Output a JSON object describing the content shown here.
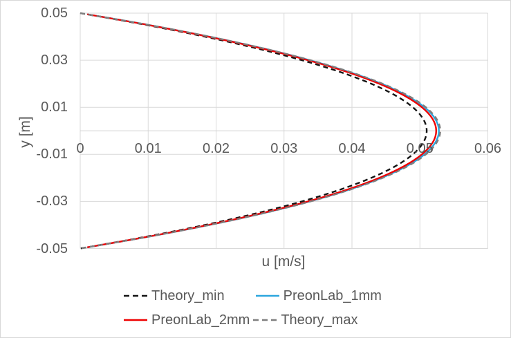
{
  "chart_data": {
    "type": "line",
    "title": "",
    "xlabel": "u [m/s]",
    "ylabel": "y [m]",
    "xlim": [
      0,
      0.06
    ],
    "ylim": [
      -0.05,
      0.05
    ],
    "grid": true,
    "legend_position": "bottom",
    "x_ticks": [
      0,
      0.01,
      0.02,
      0.03,
      0.04,
      0.05,
      0.06
    ],
    "x_tick_labels": [
      "0",
      "0.01",
      "0.02",
      "0.03",
      "0.04",
      "0.05",
      "0.06"
    ],
    "y_ticks": [
      0.05,
      0.03,
      0.01,
      -0.01,
      -0.03,
      -0.05
    ],
    "y_tick_labels": [
      "0.05",
      "0.03",
      "0.01",
      "-0.01",
      "-0.03",
      "-0.05"
    ],
    "axis_cross_y": 0,
    "series": [
      {
        "name": "Theory_min",
        "color": "#141414",
        "style": "dashed",
        "u_max": 0.051,
        "y": [
          0.05,
          0.045,
          0.04,
          0.035,
          0.03,
          0.025,
          0.02,
          0.015,
          0.01,
          0.005,
          0,
          -0.005,
          -0.01,
          -0.015,
          -0.02,
          -0.025,
          -0.03,
          -0.035,
          -0.04,
          -0.045,
          -0.05
        ],
        "u": [
          0,
          0.00969,
          0.01836,
          0.02601,
          0.03264,
          0.03825,
          0.04284,
          0.04641,
          0.04896,
          0.05049,
          0.051,
          0.05049,
          0.04896,
          0.04641,
          0.04284,
          0.03825,
          0.03264,
          0.02601,
          0.01836,
          0.00969,
          0
        ]
      },
      {
        "name": "PreonLab_1mm",
        "color": "#2BA6DE",
        "style": "solid",
        "u_max": 0.0528,
        "y": [
          0.0495,
          0.045,
          0.04,
          0.035,
          0.03,
          0.025,
          0.02,
          0.015,
          0.01,
          0.005,
          0,
          -0.005,
          -0.01,
          -0.015,
          -0.02,
          -0.025,
          -0.03,
          -0.035,
          -0.04,
          -0.045,
          -0.0495
        ],
        "u": [
          0.00105,
          0.01003,
          0.01901,
          0.02693,
          0.03379,
          0.0396,
          0.04435,
          0.04805,
          0.05069,
          0.05227,
          0.0528,
          0.05227,
          0.05069,
          0.04805,
          0.04435,
          0.0396,
          0.03379,
          0.02693,
          0.01901,
          0.01003,
          0.00105
        ]
      },
      {
        "name": "PreonLab_2mm",
        "color": "#EE0000",
        "style": "solid",
        "u_max": 0.0524,
        "y": [
          0.0495,
          0.045,
          0.04,
          0.035,
          0.03,
          0.025,
          0.02,
          0.015,
          0.01,
          0.005,
          0,
          -0.005,
          -0.01,
          -0.015,
          -0.02,
          -0.025,
          -0.03,
          -0.035,
          -0.04,
          -0.045,
          -0.0495
        ],
        "u": [
          0.00104,
          0.00996,
          0.01886,
          0.02672,
          0.03354,
          0.0393,
          0.04402,
          0.04768,
          0.0503,
          0.05188,
          0.0524,
          0.05188,
          0.0503,
          0.04768,
          0.04402,
          0.0393,
          0.03354,
          0.02672,
          0.01886,
          0.00996,
          0.00104
        ]
      },
      {
        "name": "Theory_max",
        "color": "#7F7F7F",
        "style": "dashed",
        "u_max": 0.053,
        "y": [
          0.05,
          0.045,
          0.04,
          0.035,
          0.03,
          0.025,
          0.02,
          0.015,
          0.01,
          0.005,
          0,
          -0.005,
          -0.01,
          -0.015,
          -0.02,
          -0.025,
          -0.03,
          -0.035,
          -0.04,
          -0.045,
          -0.05
        ],
        "u": [
          0,
          0.01007,
          0.01908,
          0.02703,
          0.03392,
          0.03975,
          0.04452,
          0.04823,
          0.05088,
          0.05247,
          0.053,
          0.05247,
          0.05088,
          0.04823,
          0.04452,
          0.03975,
          0.03392,
          0.02703,
          0.01908,
          0.01007,
          0
        ]
      }
    ],
    "legend_rows": [
      [
        0,
        1
      ],
      [
        2,
        3
      ]
    ],
    "style": {
      "grid_color": "#D9D9D9",
      "axis_color": "#D0D0D0",
      "text_color": "#595959",
      "background": "#FFFFFF",
      "line_width": 2.4,
      "dash_pattern": "7 5"
    }
  }
}
